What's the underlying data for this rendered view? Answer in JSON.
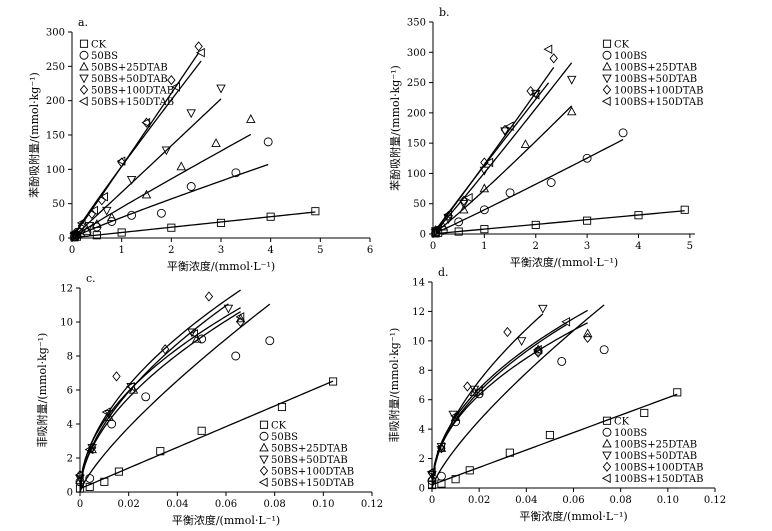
{
  "chart_data": [
    {
      "type": "scatter",
      "panel": "a.",
      "xlabel": "平衡浓度/(mmol·L⁻¹)",
      "ylabel": "苯酚吸附量/(mmol·kg⁻¹)",
      "xlim": [
        0,
        6
      ],
      "ylim": [
        0,
        300
      ],
      "xticks": [
        "0",
        "1",
        "2",
        "3",
        "4",
        "5",
        "6"
      ],
      "yticks": [
        "0",
        "50",
        "100",
        "150",
        "200",
        "250",
        "300"
      ],
      "xtick_values": [
        0,
        1,
        2,
        3,
        4,
        5,
        6
      ],
      "ytick_values": [
        0,
        50,
        100,
        150,
        200,
        250,
        300
      ],
      "legend_position": "top-left",
      "series": [
        {
          "name": "CK",
          "marker": "square",
          "points": [
            [
              0.05,
              1
            ],
            [
              0.1,
              2
            ],
            [
              0.5,
              4
            ],
            [
              1.0,
              8
            ],
            [
              2.0,
              15
            ],
            [
              3.0,
              22
            ],
            [
              4.0,
              31
            ],
            [
              4.9,
              39
            ]
          ],
          "fit": "linear"
        },
        {
          "name": "50BS",
          "marker": "circle",
          "points": [
            [
              0.05,
              2
            ],
            [
              0.1,
              4
            ],
            [
              0.3,
              8
            ],
            [
              0.5,
              16
            ],
            [
              0.8,
              24
            ],
            [
              1.2,
              33
            ],
            [
              1.8,
              36
            ],
            [
              2.4,
              75
            ],
            [
              3.3,
              95
            ],
            [
              3.95,
              140
            ]
          ],
          "fit": "power"
        },
        {
          "name": "50BS+25DTAB",
          "marker": "triangle-up",
          "points": [
            [
              0.05,
              3
            ],
            [
              0.1,
              6
            ],
            [
              0.3,
              10
            ],
            [
              0.5,
              20
            ],
            [
              0.8,
              30
            ],
            [
              1.5,
              63
            ],
            [
              2.2,
              104
            ],
            [
              2.9,
              138
            ],
            [
              3.6,
              173
            ]
          ],
          "fit": "power"
        },
        {
          "name": "50BS+50DTAB",
          "marker": "triangle-down",
          "points": [
            [
              0.05,
              4
            ],
            [
              0.15,
              9
            ],
            [
              0.35,
              18
            ],
            [
              0.7,
              40
            ],
            [
              1.2,
              85
            ],
            [
              1.9,
              128
            ],
            [
              2.4,
              182
            ],
            [
              3.0,
              218
            ]
          ],
          "fit": "power"
        },
        {
          "name": "50BS+100DTAB",
          "marker": "diamond",
          "points": [
            [
              0.05,
              6
            ],
            [
              0.2,
              18
            ],
            [
              0.4,
              35
            ],
            [
              0.6,
              55
            ],
            [
              1.0,
              110
            ],
            [
              1.5,
              168
            ],
            [
              2.0,
              230
            ],
            [
              2.55,
              279
            ]
          ],
          "fit": "power"
        },
        {
          "name": "50BS+150DTAB",
          "marker": "triangle-left",
          "points": [
            [
              0.05,
              7
            ],
            [
              0.2,
              22
            ],
            [
              0.45,
              40
            ],
            [
              0.65,
              60
            ],
            [
              1.0,
              112
            ],
            [
              1.5,
              168
            ],
            [
              2.1,
              220
            ],
            [
              2.6,
              270
            ]
          ],
          "fit": "power"
        }
      ]
    },
    {
      "type": "scatter",
      "panel": "b.",
      "xlabel": "平衡浓度/(mmol·L⁻¹)",
      "ylabel": "苯酚吸附量/(mmol·kg⁻¹)",
      "xlim": [
        0,
        5.1
      ],
      "ylim": [
        0,
        350
      ],
      "xticks": [
        "0",
        "1",
        "2",
        "3",
        "4",
        "5"
      ],
      "yticks": [
        "0",
        "50",
        "100",
        "150",
        "200",
        "250",
        "300",
        "350"
      ],
      "xtick_values": [
        0,
        1,
        2,
        3,
        4,
        5
      ],
      "ytick_values": [
        0,
        50,
        100,
        150,
        200,
        250,
        300,
        350
      ],
      "legend_position": "top-right",
      "series": [
        {
          "name": "CK",
          "marker": "square",
          "points": [
            [
              0.05,
              1
            ],
            [
              0.1,
              2
            ],
            [
              0.5,
              4
            ],
            [
              1.0,
              8
            ],
            [
              2.0,
              15
            ],
            [
              3.0,
              22
            ],
            [
              4.0,
              31
            ],
            [
              4.9,
              40
            ]
          ],
          "fit": "linear"
        },
        {
          "name": "100BS",
          "marker": "circle",
          "points": [
            [
              0.05,
              2
            ],
            [
              0.2,
              6
            ],
            [
              0.5,
              20
            ],
            [
              1.0,
              40
            ],
            [
              1.5,
              68
            ],
            [
              2.3,
              85
            ],
            [
              3.0,
              125
            ],
            [
              3.7,
              167
            ]
          ],
          "fit": "power"
        },
        {
          "name": "100BS+25DTAB",
          "marker": "triangle-up",
          "points": [
            [
              0.05,
              3
            ],
            [
              0.2,
              12
            ],
            [
              0.6,
              40
            ],
            [
              1.0,
              75
            ],
            [
              1.8,
              148
            ],
            [
              2.7,
              202
            ]
          ],
          "fit": "power"
        },
        {
          "name": "100BS+50DTAB",
          "marker": "triangle-down",
          "points": [
            [
              0.05,
              5
            ],
            [
              0.3,
              25
            ],
            [
              0.6,
              50
            ],
            [
              1.0,
              105
            ],
            [
              1.4,
              170
            ],
            [
              2.0,
              232
            ],
            [
              2.7,
              255
            ]
          ],
          "fit": "power"
        },
        {
          "name": "100BS+100DTAB",
          "marker": "diamond",
          "points": [
            [
              0.05,
              6
            ],
            [
              0.3,
              30
            ],
            [
              0.6,
              55
            ],
            [
              1.0,
              118
            ],
            [
              1.4,
              172
            ],
            [
              1.9,
              236
            ],
            [
              2.35,
              290
            ]
          ],
          "fit": "power"
        },
        {
          "name": "100BS+150DTAB",
          "marker": "triangle-left",
          "points": [
            [
              0.05,
              7
            ],
            [
              0.3,
              32
            ],
            [
              0.7,
              60
            ],
            [
              1.1,
              118
            ],
            [
              1.5,
              178
            ],
            [
              2.0,
              230
            ],
            [
              2.25,
              305
            ]
          ],
          "fit": "power"
        }
      ]
    },
    {
      "type": "scatter",
      "panel": "c.",
      "xlabel": "平衡浓度/(mmol·L⁻¹)",
      "ylabel": "菲吸附量/(mmol·kg⁻¹)",
      "xlim": [
        0,
        0.12
      ],
      "ylim": [
        0,
        12
      ],
      "xticks": [
        "0",
        "0.02",
        "0.04",
        "0.06",
        "0.08",
        "0.10",
        "0.12"
      ],
      "yticks": [
        "0",
        "2",
        "4",
        "6",
        "8",
        "10",
        "12"
      ],
      "xtick_values": [
        0,
        0.02,
        0.04,
        0.06,
        0.08,
        0.1,
        0.12
      ],
      "ytick_values": [
        0,
        2,
        4,
        6,
        8,
        10,
        12
      ],
      "legend_position": "bottom-right",
      "series": [
        {
          "name": "CK",
          "marker": "square",
          "points": [
            [
              0.0,
              0.2
            ],
            [
              0.004,
              0.3
            ],
            [
              0.01,
              0.6
            ],
            [
              0.016,
              1.2
            ],
            [
              0.033,
              2.4
            ],
            [
              0.05,
              3.6
            ],
            [
              0.083,
              5.0
            ],
            [
              0.104,
              6.5
            ]
          ],
          "fit": "linear"
        },
        {
          "name": "50BS",
          "marker": "circle",
          "points": [
            [
              0.0,
              0.6
            ],
            [
              0.004,
              0.8
            ],
            [
              0.013,
              4.0
            ],
            [
              0.027,
              5.6
            ],
            [
              0.05,
              9.0
            ],
            [
              0.064,
              8.0
            ],
            [
              0.078,
              8.9
            ]
          ],
          "fit": "freundlich"
        },
        {
          "name": "50BS+25DTAB",
          "marker": "triangle-up",
          "points": [
            [
              0.0,
              0.7
            ],
            [
              0.005,
              2.5
            ],
            [
              0.012,
              4.4
            ],
            [
              0.022,
              6.0
            ],
            [
              0.048,
              9.0
            ],
            [
              0.066,
              10.2
            ]
          ],
          "fit": "freundlich"
        },
        {
          "name": "50BS+50DTAB",
          "marker": "triangle-down",
          "points": [
            [
              0.0,
              0.8
            ],
            [
              0.005,
              2.6
            ],
            [
              0.012,
              4.6
            ],
            [
              0.021,
              6.2
            ],
            [
              0.046,
              9.4
            ],
            [
              0.061,
              10.8
            ]
          ],
          "fit": "freundlich"
        },
        {
          "name": "50BS+100DTAB",
          "marker": "diamond",
          "points": [
            [
              0.0,
              1.0
            ],
            [
              0.005,
              2.6
            ],
            [
              0.015,
              6.8
            ],
            [
              0.035,
              8.4
            ],
            [
              0.053,
              11.5
            ],
            [
              0.066,
              10.0
            ]
          ],
          "fit": "freundlich"
        },
        {
          "name": "50BS+150DTAB",
          "marker": "triangle-left",
          "points": [
            [
              0.0,
              1.0
            ],
            [
              0.004,
              2.5
            ],
            [
              0.011,
              4.7
            ],
            [
              0.021,
              6.2
            ],
            [
              0.047,
              9.3
            ],
            [
              0.066,
              10.3
            ]
          ],
          "fit": "freundlich"
        }
      ]
    },
    {
      "type": "scatter",
      "panel": "d.",
      "xlabel": "平衡浓度/(mmol·L⁻¹)",
      "ylabel": "菲吸附量/(mmol·kg⁻¹)",
      "xlim": [
        0,
        0.12
      ],
      "ylim": [
        0,
        14
      ],
      "xticks": [
        "0",
        "0.02",
        "0.04",
        "0.06",
        "0.08",
        "0.10",
        "0.12"
      ],
      "yticks": [
        "0",
        "2",
        "4",
        "6",
        "8",
        "10",
        "12",
        "14"
      ],
      "xtick_values": [
        0,
        0.02,
        0.04,
        0.06,
        0.08,
        0.1,
        0.12
      ],
      "ytick_values": [
        0,
        2,
        4,
        6,
        8,
        10,
        12,
        14
      ],
      "legend_position": "bottom-right",
      "series": [
        {
          "name": "CK",
          "marker": "square",
          "points": [
            [
              0.0,
              0.2
            ],
            [
              0.004,
              0.3
            ],
            [
              0.01,
              0.6
            ],
            [
              0.016,
              1.2
            ],
            [
              0.033,
              2.4
            ],
            [
              0.05,
              3.6
            ],
            [
              0.09,
              5.1
            ],
            [
              0.104,
              6.5
            ]
          ],
          "fit": "linear"
        },
        {
          "name": "100BS",
          "marker": "circle",
          "points": [
            [
              0.0,
              0.5
            ],
            [
              0.004,
              0.8
            ],
            [
              0.01,
              4.5
            ],
            [
              0.02,
              6.4
            ],
            [
              0.045,
              9.3
            ],
            [
              0.055,
              8.6
            ],
            [
              0.073,
              9.4
            ]
          ],
          "fit": "freundlich"
        },
        {
          "name": "100BS+25DTAB",
          "marker": "triangle-up",
          "points": [
            [
              0.0,
              0.7
            ],
            [
              0.004,
              2.7
            ],
            [
              0.01,
              4.8
            ],
            [
              0.018,
              6.5
            ],
            [
              0.045,
              9.4
            ],
            [
              0.066,
              10.5
            ]
          ],
          "fit": "freundlich"
        },
        {
          "name": "100BS+50DTAB",
          "marker": "triangle-down",
          "points": [
            [
              0.0,
              0.9
            ],
            [
              0.004,
              2.8
            ],
            [
              0.009,
              5.0
            ],
            [
              0.018,
              6.7
            ],
            [
              0.038,
              10.0
            ],
            [
              0.047,
              12.2
            ]
          ],
          "fit": "freundlich"
        },
        {
          "name": "100BS+100DTAB",
          "marker": "diamond",
          "points": [
            [
              0.0,
              1.0
            ],
            [
              0.004,
              2.7
            ],
            [
              0.015,
              6.9
            ],
            [
              0.032,
              10.6
            ],
            [
              0.045,
              9.2
            ],
            [
              0.066,
              10.2
            ]
          ],
          "fit": "freundlich"
        },
        {
          "name": "100BS+150DTAB",
          "marker": "triangle-left",
          "points": [
            [
              0.0,
              1.1
            ],
            [
              0.004,
              2.8
            ],
            [
              0.01,
              4.9
            ],
            [
              0.02,
              6.6
            ],
            [
              0.045,
              9.4
            ],
            [
              0.057,
              11.3
            ]
          ],
          "fit": "freundlich"
        }
      ]
    }
  ]
}
